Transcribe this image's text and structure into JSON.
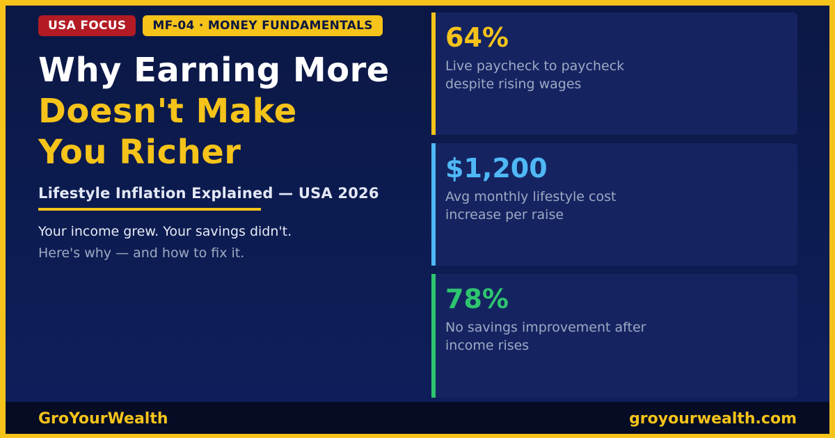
{
  "tags": {
    "region": "USA FOCUS",
    "series": "MF-04 · MONEY FUNDAMENTALS"
  },
  "title": {
    "line1": "Why Earning More",
    "line2": "Doesn't Make",
    "line3": "You Richer"
  },
  "subtitle": "Lifestyle Inflation Explained — USA 2026",
  "intro": {
    "line1": "Your income grew. Your savings didn't.",
    "line2": "Here's why — and how to fix it."
  },
  "stats": [
    {
      "value": "64%",
      "desc": "Live paycheck to paycheck despite rising wages",
      "color": "#f5c31a"
    },
    {
      "value": "$1,200",
      "desc": "Avg monthly lifestyle cost increase per raise",
      "color": "#4fb8f5"
    },
    {
      "value": "78%",
      "desc": "No savings improvement after income rises",
      "color": "#2ec56f"
    }
  ],
  "footer": {
    "brand": "GroYourWealth",
    "url": "groyourwealth.com"
  },
  "colors": {
    "accent": "#f5c31a",
    "background": "#0e1f5c",
    "tag_red": "#b31b24"
  }
}
